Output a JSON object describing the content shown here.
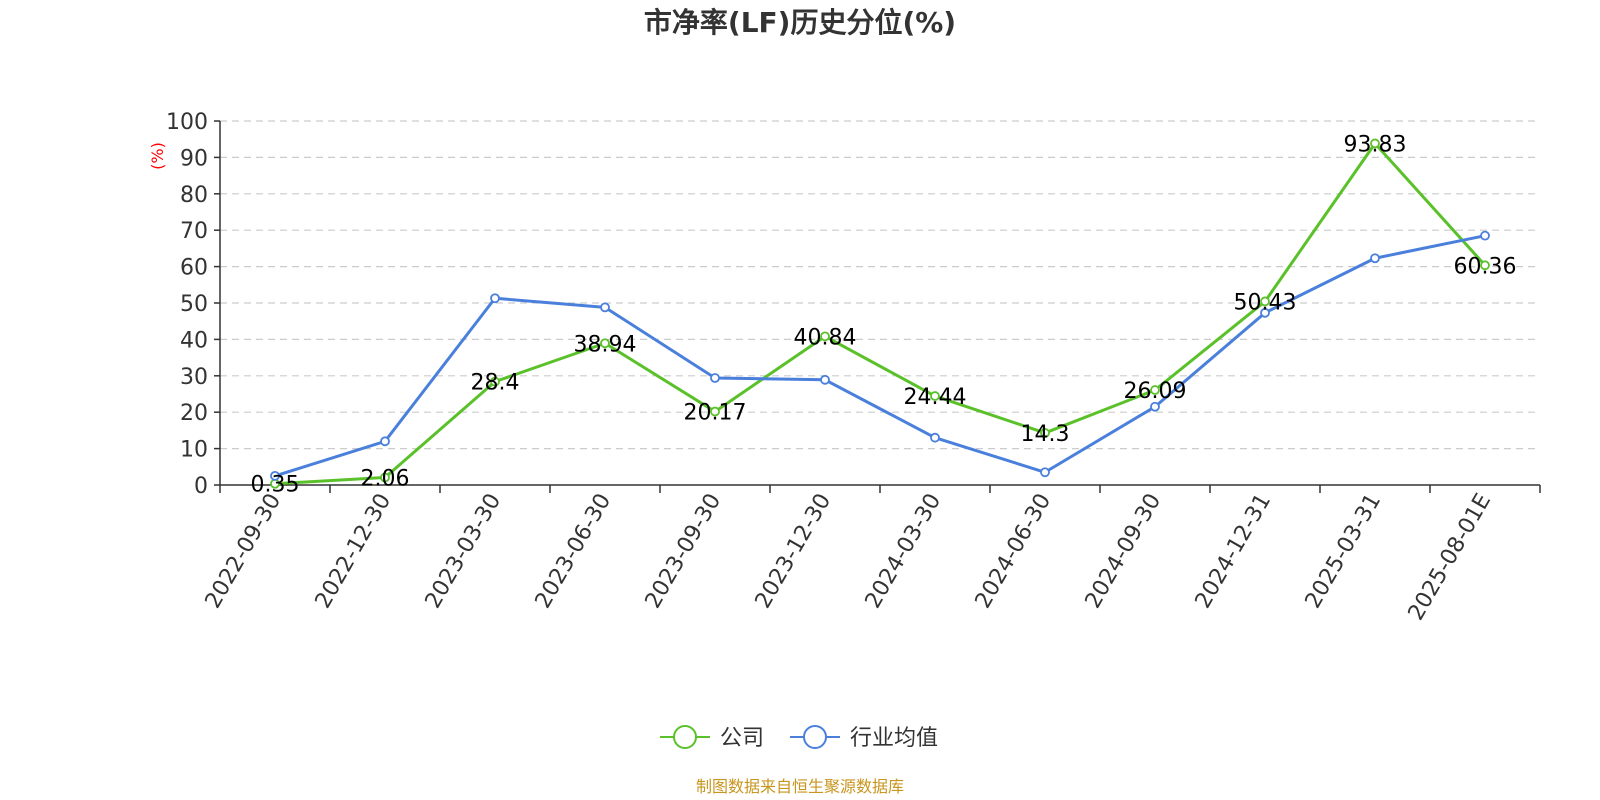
{
  "chart_data": {
    "type": "line",
    "title": "市净率(LF)历史分位(%)",
    "ylabel": "(%)",
    "xlabel": "",
    "ylim": [
      0,
      100
    ],
    "y_ticks": [
      0,
      10,
      20,
      30,
      40,
      50,
      60,
      70,
      80,
      90,
      100
    ],
    "grid": true,
    "legend_position": "bottom-center",
    "categories": [
      "2022-09-30",
      "2022-12-30",
      "2023-03-30",
      "2023-06-30",
      "2023-09-30",
      "2023-12-30",
      "2024-03-30",
      "2024-06-30",
      "2024-09-30",
      "2024-12-31",
      "2025-03-31",
      "2025-08-01E"
    ],
    "series": [
      {
        "name": "公司",
        "color": "#5ac12a",
        "values": [
          0.35,
          2.06,
          28.4,
          38.94,
          20.17,
          40.84,
          24.44,
          14.3,
          26.09,
          50.43,
          93.83,
          60.36
        ],
        "labels": [
          "0.35",
          "2.06",
          "28.4",
          "38.94",
          "20.17",
          "40.84",
          "24.44",
          "14.3",
          "26.09",
          "50.43",
          "93.83",
          "60.36"
        ]
      },
      {
        "name": "行业均值",
        "color": "#4a80dc",
        "values": [
          2.5,
          12.0,
          51.3,
          48.8,
          29.4,
          28.9,
          13.0,
          3.5,
          21.5,
          47.3,
          62.3,
          68.5
        ]
      }
    ],
    "source": "制图数据来自恒生聚源数据库",
    "source_color": "#c8961e"
  }
}
